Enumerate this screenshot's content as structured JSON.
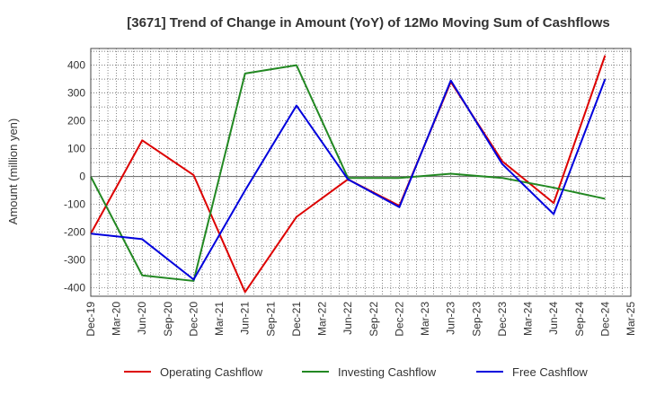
{
  "chart_data": {
    "type": "line",
    "title": "[3671]  Trend of Change in Amount (YoY) of 12Mo Moving Sum of Cashflows",
    "ylabel": "Amount (million yen)",
    "xlabel": "",
    "ylim": [
      -430,
      460
    ],
    "y_ticks": [
      400,
      300,
      200,
      100,
      0,
      -100,
      -200,
      -300,
      -400
    ],
    "categories": [
      "Dec-19",
      "Mar-20",
      "Jun-20",
      "Sep-20",
      "Dec-20",
      "Mar-21",
      "Jun-21",
      "Sep-21",
      "Dec-21",
      "Mar-22",
      "Jun-22",
      "Sep-22",
      "Dec-22",
      "Mar-23",
      "Jun-23",
      "Sep-23",
      "Dec-23",
      "Mar-24",
      "Jun-24",
      "Sep-24",
      "Dec-24",
      "Mar-25"
    ],
    "series": [
      {
        "name": "Operating Cashflow",
        "color": "#dd0000",
        "values": [
          -205,
          null,
          130,
          null,
          5,
          null,
          -415,
          null,
          -145,
          null,
          -10,
          null,
          -105,
          null,
          340,
          null,
          55,
          null,
          -95,
          null,
          435,
          null
        ]
      },
      {
        "name": "Investing Cashflow",
        "color": "#228822",
        "values": [
          0,
          null,
          -355,
          null,
          -375,
          null,
          370,
          null,
          400,
          null,
          -5,
          null,
          -5,
          null,
          10,
          null,
          -5,
          null,
          -40,
          null,
          -80,
          null
        ]
      },
      {
        "name": "Free Cashflow",
        "color": "#0000dd",
        "values": [
          -205,
          null,
          -225,
          null,
          -370,
          null,
          -50,
          null,
          255,
          null,
          -10,
          null,
          -110,
          null,
          345,
          null,
          45,
          null,
          -135,
          null,
          350,
          null
        ]
      }
    ]
  }
}
